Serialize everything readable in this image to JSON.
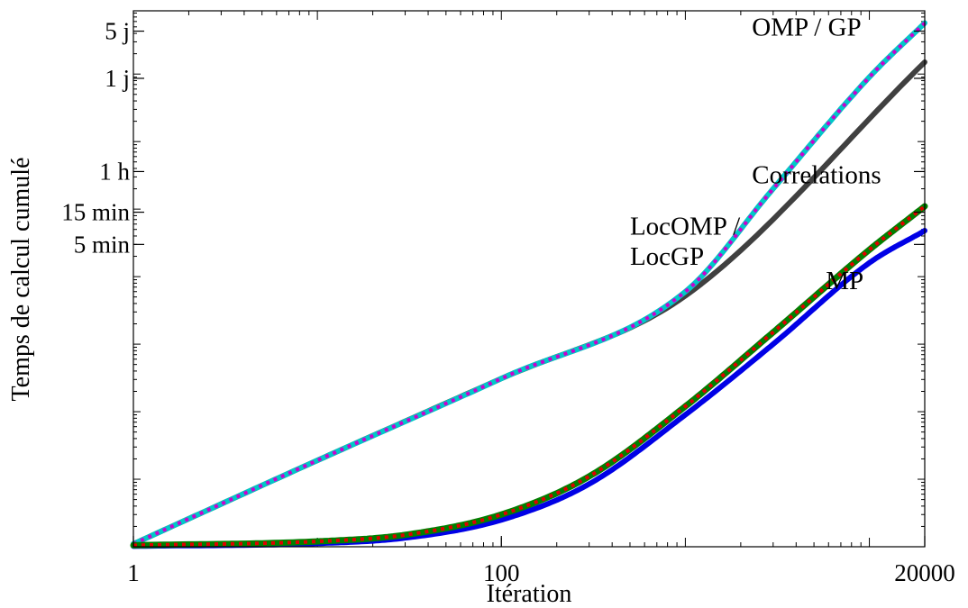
{
  "chart_data": {
    "type": "line",
    "xlabel": "Itération",
    "ylabel": "Temps de calcul cumulé",
    "x_scale": "log",
    "y_scale": "log",
    "xlim": [
      1,
      20000
    ],
    "ylim_seconds": [
      0.01,
      864000
    ],
    "grid": false,
    "x_ticks": [
      {
        "value": 1,
        "label": "1"
      },
      {
        "value": 100,
        "label": "100"
      },
      {
        "value": 20000,
        "label": "20000"
      }
    ],
    "y_ticks": [
      {
        "value": 300,
        "label": "5 min"
      },
      {
        "value": 900,
        "label": "15 min"
      },
      {
        "value": 3600,
        "label": "1 h"
      },
      {
        "value": 86400,
        "label": "1 j"
      },
      {
        "value": 432000,
        "label": "5 j"
      }
    ],
    "series": [
      {
        "id": "correlations",
        "color": "#404040",
        "style": "solid",
        "x": [
          1,
          10,
          100,
          1000,
          20000
        ],
        "y": [
          0.011,
          0.19,
          3.1,
          52,
          150000
        ]
      },
      {
        "id": "omp",
        "color": "#00c8c8",
        "style": "solid",
        "x": [
          1,
          10,
          100,
          1000,
          3000,
          10000,
          20000
        ],
        "y": [
          0.011,
          0.19,
          3.1,
          60,
          2000,
          90000,
          570000
        ]
      },
      {
        "id": "gp",
        "color": "#cc00cc",
        "style": "dashed",
        "x": [
          1,
          10,
          100,
          1000,
          3000,
          10000,
          20000
        ],
        "y": [
          0.011,
          0.19,
          3.1,
          60,
          2000,
          90000,
          570000
        ]
      },
      {
        "id": "locomp",
        "color": "#008000",
        "style": "solid",
        "x": [
          1,
          10,
          30,
          100,
          300,
          1000,
          3000,
          10000,
          20000
        ],
        "y": [
          0.0105,
          0.012,
          0.015,
          0.03,
          0.11,
          1.2,
          15,
          250,
          1100
        ]
      },
      {
        "id": "locgp",
        "color": "#e00000",
        "style": "dashed",
        "x": [
          1,
          10,
          30,
          100,
          300,
          1000,
          3000,
          10000,
          20000
        ],
        "y": [
          0.0105,
          0.012,
          0.015,
          0.03,
          0.11,
          1.2,
          15,
          250,
          1100
        ]
      },
      {
        "id": "mp",
        "color": "#0000e6",
        "style": "solid",
        "x": [
          1,
          10,
          30,
          100,
          300,
          1000,
          3000,
          10000,
          20000
        ],
        "y": [
          0.0102,
          0.0112,
          0.0135,
          0.025,
          0.085,
          0.9,
          10,
          160,
          480
        ]
      }
    ],
    "annotations": [
      {
        "text": "OMP / GP",
        "x": 2300,
        "y": 370000
      },
      {
        "text": "Correlations",
        "x": 2300,
        "y": 2400
      },
      {
        "text": "LocOMP /",
        "x": 500,
        "y": 420
      },
      {
        "text": "LocGP",
        "x": 500,
        "y": 150
      },
      {
        "text": "MP",
        "x": 5800,
        "y": 65
      }
    ]
  }
}
